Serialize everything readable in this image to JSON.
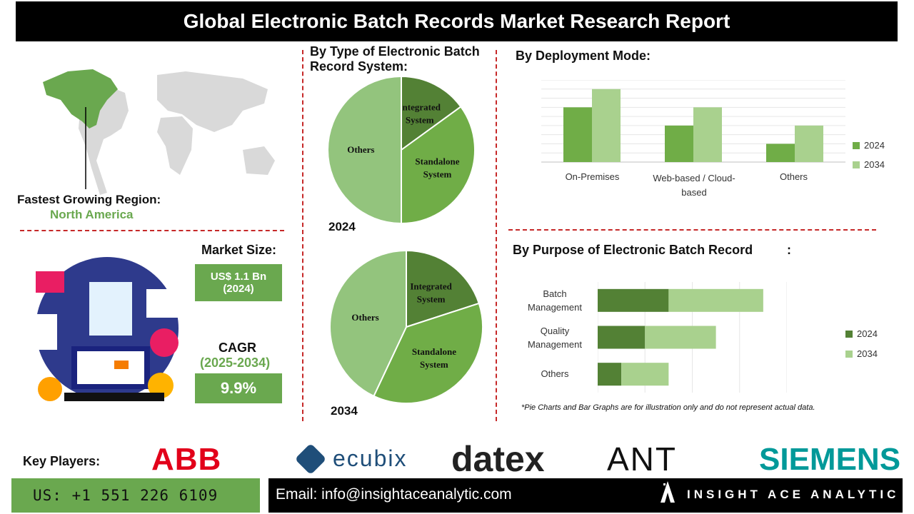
{
  "title": "Global Electronic Batch Records Market Research Report",
  "region": {
    "label": "Fastest Growing Region:",
    "value": "North America"
  },
  "market_size": {
    "label": "Market Size:",
    "value_line1": "US$ 1.1 Bn",
    "value_line2": "(2024)"
  },
  "cagr": {
    "label": "CAGR",
    "period": "(2025-2034)",
    "value": "9.9%"
  },
  "note": "*Pie Charts and Bar Graphs are for illustration only and do not represent actual data.",
  "footer": {
    "key_players_label": "Key Players:",
    "phone": "US: +1 551 226 6109",
    "email": "Email: info@insightaceanalytic.com",
    "brand": "INSIGHT ACE ANALYTIC"
  },
  "players": [
    "ABB",
    "ecubix",
    "datex",
    "ANT",
    "SIEMENS"
  ],
  "colors": {
    "dark_green": "#538135",
    "mid_green": "#70ad47",
    "light_green": "#a9d18e",
    "accent_green": "#6aa84f",
    "red": "#c62828"
  },
  "chart_data": [
    {
      "type": "pie",
      "title": "By Type of Electronic Batch Record System:",
      "year": "2024",
      "slices": [
        {
          "label": "Integrated System",
          "value": 15
        },
        {
          "label": "Standalone System",
          "value": 35
        },
        {
          "label": "Others",
          "value": 50
        }
      ]
    },
    {
      "type": "pie",
      "year": "2034",
      "slices": [
        {
          "label": "Integrated System",
          "value": 20
        },
        {
          "label": "Standalone System",
          "value": 37
        },
        {
          "label": "Others",
          "value": 43
        }
      ]
    },
    {
      "type": "bar",
      "title": "By Deployment Mode:",
      "categories": [
        "On-Premises",
        "Web-based / Cloud-based",
        "Others"
      ],
      "series": [
        {
          "name": "2024",
          "values": [
            3,
            2,
            1
          ]
        },
        {
          "name": "2034",
          "values": [
            4,
            3,
            2
          ]
        }
      ],
      "ylim": [
        0,
        4.5
      ],
      "grid": true,
      "legend": "right"
    },
    {
      "type": "bar",
      "orientation": "horizontal",
      "stacked": true,
      "title": "By Purpose of Electronic Batch Record",
      "title_suffix": ":",
      "categories": [
        "Batch Management",
        "Quality Management",
        "Others"
      ],
      "series": [
        {
          "name": "2024",
          "values": [
            1.5,
            1.0,
            0.5
          ]
        },
        {
          "name": "2034",
          "values": [
            2.0,
            1.5,
            1.0
          ]
        }
      ],
      "xlim": [
        0,
        4
      ],
      "grid": true,
      "legend": "right"
    }
  ]
}
